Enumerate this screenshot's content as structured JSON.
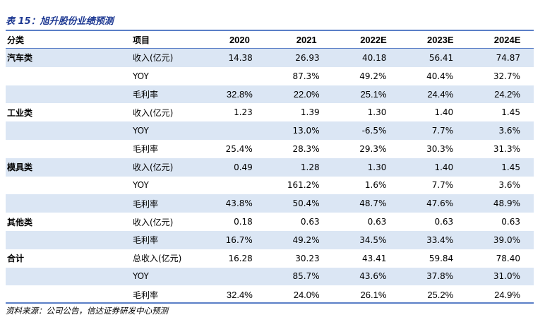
{
  "title": "表 15：旭升股份业绩预测",
  "header": [
    "分类",
    "项目",
    "2020",
    "2021",
    "2022E",
    "2023E",
    "2024E"
  ],
  "rows": [
    {
      "cat": "汽车类",
      "item": "收入(亿元)",
      "v": [
        "14.38",
        "26.93",
        "40.18",
        "56.41",
        "74.87"
      ],
      "shade": true,
      "alt": false
    },
    {
      "cat": "",
      "item": "YOY",
      "v": [
        "",
        "87.3%",
        "49.2%",
        "40.4%",
        "32.7%"
      ],
      "shade": false,
      "alt": false
    },
    {
      "cat": "",
      "item": "毛利率",
      "v": [
        "32.8%",
        "22.0%",
        "25.1%",
        "24.4%",
        "24.2%"
      ],
      "shade": true,
      "alt": true
    },
    {
      "cat": "工业类",
      "item": "收入(亿元)",
      "v": [
        "1.23",
        "1.39",
        "1.30",
        "1.40",
        "1.45"
      ],
      "shade": false,
      "alt": false
    },
    {
      "cat": "",
      "item": "YOY",
      "v": [
        "",
        "13.0%",
        "-6.5%",
        "7.7%",
        "3.6%"
      ],
      "shade": true,
      "alt": false
    },
    {
      "cat": "",
      "item": "毛利率",
      "v": [
        "25.4%",
        "28.3%",
        "29.3%",
        "30.3%",
        "31.3%"
      ],
      "shade": false,
      "alt": false
    },
    {
      "cat": "模具类",
      "item": "收入(亿元)",
      "v": [
        "0.49",
        "1.28",
        "1.30",
        "1.40",
        "1.45"
      ],
      "shade": true,
      "alt": false
    },
    {
      "cat": "",
      "item": "YOY",
      "v": [
        "",
        "161.2%",
        "1.6%",
        "7.7%",
        "3.6%"
      ],
      "shade": false,
      "alt": false
    },
    {
      "cat": "",
      "item": "毛利率",
      "v": [
        "43.8%",
        "50.4%",
        "48.7%",
        "47.6%",
        "48.9%"
      ],
      "shade": true,
      "alt": false
    },
    {
      "cat": "其他类",
      "item": "收入(亿元)",
      "v": [
        "0.18",
        "0.63",
        "0.63",
        "0.63",
        "0.63"
      ],
      "shade": false,
      "alt": false
    },
    {
      "cat": "",
      "item": "毛利率",
      "v": [
        "16.7%",
        "49.2%",
        "34.5%",
        "33.4%",
        "39.0%"
      ],
      "shade": true,
      "alt": false
    },
    {
      "cat": "合计",
      "item": "总收入(亿元)",
      "v": [
        "16.28",
        "30.23",
        "43.41",
        "59.84",
        "78.40"
      ],
      "shade": false,
      "alt": false
    },
    {
      "cat": "",
      "item": "YOY",
      "v": [
        "",
        "85.7%",
        "43.6%",
        "37.8%",
        "31.0%"
      ],
      "shade": true,
      "alt": false
    },
    {
      "cat": "",
      "item": "毛利率",
      "v": [
        "32.4%",
        "24.0%",
        "26.1%",
        "25.2%",
        "24.9%"
      ],
      "shade": false,
      "alt": true
    }
  ],
  "source": "资料来源：公司公告，信达证券研发中心预测",
  "colors": {
    "title": "#1f3a93",
    "rule": "#5b7fc7",
    "shade": "#dbe6f4"
  }
}
